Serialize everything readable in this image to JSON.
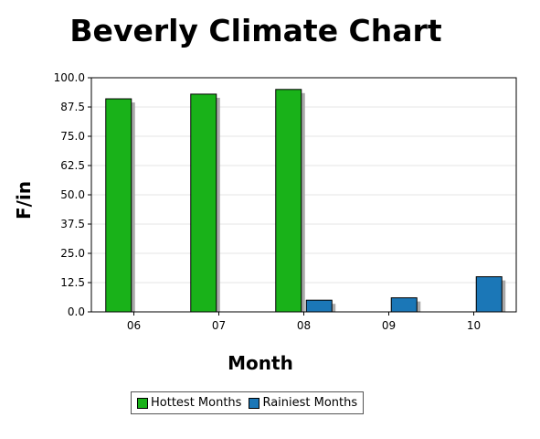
{
  "chart_data": {
    "type": "bar",
    "title": "Beverly Climate Chart",
    "xlabel": "Month",
    "ylabel": "F/in",
    "categories": [
      "06",
      "07",
      "08",
      "09",
      "10"
    ],
    "series": [
      {
        "name": "Hottest Months",
        "color": "#19b219",
        "values": [
          91,
          93,
          95,
          null,
          null
        ]
      },
      {
        "name": "Rainiest Months",
        "color": "#1b77b7",
        "values": [
          null,
          null,
          5,
          6,
          15
        ]
      }
    ],
    "ylim": [
      0,
      100
    ],
    "yticks": [
      "0.0",
      "12.5",
      "25.0",
      "37.5",
      "50.0",
      "62.5",
      "75.0",
      "87.5",
      "100.0"
    ],
    "grid": true,
    "legend_position": "bottom"
  }
}
